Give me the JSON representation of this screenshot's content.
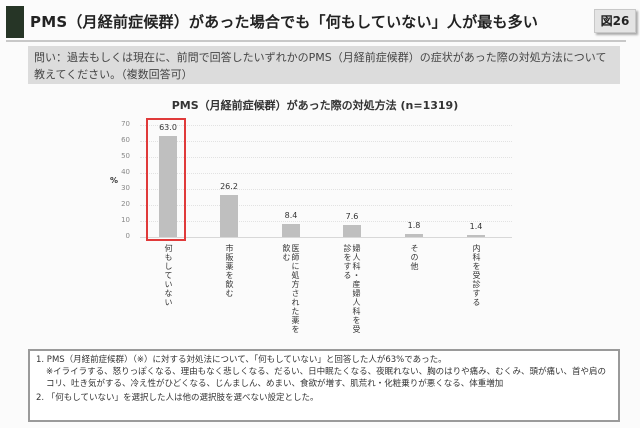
{
  "header": {
    "title": "PMS（月経前症候群）があった場合でも「何もしていない」人が最も多い",
    "figure_badge": "図26"
  },
  "question": "問い：過去もしくは現在に、前問で回答したいずれかのPMS（月経前症候群）の症状があった際の対処方法について教えてください。（複数回答可）",
  "chart_data": {
    "type": "bar",
    "title": "PMS（月経前症候群）があった際の対処方法 (n=1319)",
    "xlabel": "",
    "ylabel": "%",
    "ylim": [
      0,
      70
    ],
    "yticks": [
      0,
      10,
      20,
      30,
      40,
      50,
      60,
      70
    ],
    "grid": true,
    "categories": [
      "何もしていない",
      "市販薬を飲む",
      "医師に処方された薬を飲む",
      "婦人科・産婦人科を受診をする",
      "その他",
      "内科を受診する"
    ],
    "values": [
      63.0,
      26.2,
      8.4,
      7.6,
      1.8,
      1.4
    ],
    "value_labels": [
      "63.0",
      "26.2",
      "8.4",
      "7.6",
      "1.8",
      "1.4"
    ],
    "bar_color": "#bfbfbf",
    "highlight_category": "何もしていない",
    "highlight_color": "#e03a3a"
  },
  "notes": {
    "item1": "1. PMS（月経前症候群）（※）に対する対処法について、「何もしていない」と回答した人が63%であった。",
    "item1_detail": "※イライラする、怒りっぽくなる、理由もなく悲しくなる、だるい、日中眠たくなる、夜眠れない、胸のはりや痛み、むくみ、頭が痛い、首や肩のコリ、吐き気がする、冷え性がひどくなる、じんましん、めまい、食欲が増す、肌荒れ・化粧乗りが悪くなる、体重増加",
    "item2": "2. 「何もしていない」を選択した人は他の選択肢を選べない設定とした。"
  }
}
